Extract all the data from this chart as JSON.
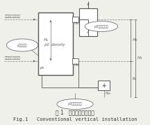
{
  "bg_color": "#f0f0eb",
  "line_color": "#555555",
  "dashed_color": "#888888",
  "title_cn": "图 1   常规垂直安装方案",
  "title_en": "Fig.1   Conventional vertical installation",
  "label_neg": "接液感压库负压侧",
  "label_pos": "接液感压库正压侧",
  "bubble1": "ρ合液密度",
  "bubble2": "ρ0分导液密度",
  "bubble3": "ρ0传导液密度",
  "density_label": "ρ0  density",
  "font_size_labels": 4.5,
  "font_size_title_cn": 5.5,
  "font_size_title_en": 5.0
}
